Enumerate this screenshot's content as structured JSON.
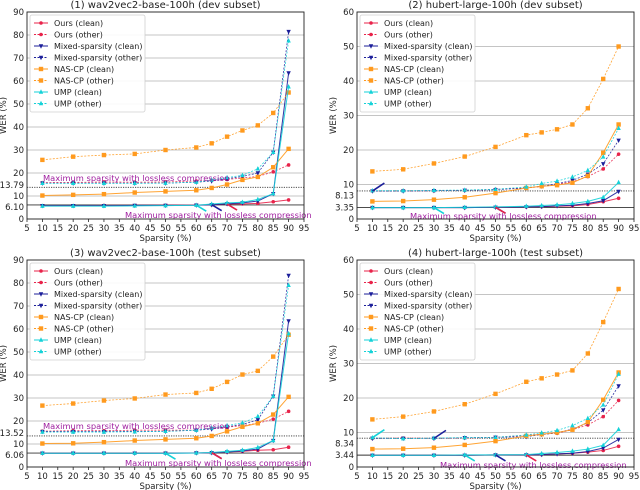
{
  "styles": {
    "Ours": {
      "color": "#e8234a",
      "marker": "circle"
    },
    "Mixed-sparsity": {
      "color": "#1c1f9a",
      "marker": "tri-down"
    },
    "NAS-CP": {
      "color": "#ff9a1e",
      "marker": "square"
    },
    "UMP": {
      "color": "#14d2d8",
      "marker": "tri-up"
    }
  },
  "chart_data": [
    {
      "type": "line",
      "title": "(1) wav2vec2-base-100h (dev subset)",
      "xlabel": "Sparsity (%)",
      "ylabel": "WER (%)",
      "xlim": [
        5,
        95
      ],
      "ylim": [
        0,
        90
      ],
      "xticks": [
        5,
        10,
        15,
        20,
        25,
        30,
        35,
        40,
        45,
        50,
        55,
        60,
        65,
        70,
        75,
        80,
        85,
        90,
        95
      ],
      "yticks": [
        0,
        10,
        20,
        30,
        40,
        50,
        60,
        70,
        80,
        90
      ],
      "ref_lines": [
        {
          "y": 13.79,
          "label": "13.79",
          "style": "dotted"
        },
        {
          "y": 6.1,
          "label": "6.10",
          "style": "solid"
        }
      ],
      "legend": "upper-left",
      "grid": "horizontal",
      "x": [
        10,
        20,
        30,
        40,
        50,
        60,
        65,
        70,
        75,
        80,
        85,
        90
      ],
      "series": [
        {
          "name": "Ours (clean)",
          "method": "Ours",
          "split": "clean",
          "values": [
            5.8,
            5.8,
            5.9,
            5.9,
            6.0,
            6.1,
            6.2,
            6.5,
            6.6,
            6.8,
            7.5,
            8.3
          ]
        },
        {
          "name": "Ours (other)",
          "method": "Ours",
          "split": "other",
          "values": [
            15.8,
            15.9,
            16.1,
            16.0,
            16.1,
            16.5,
            16.8,
            17.2,
            17.8,
            18.5,
            20.5,
            23.5
          ]
        },
        {
          "name": "Mixed-sparsity (clean)",
          "method": "Mixed-sparsity",
          "split": "clean",
          "values": [
            5.8,
            5.8,
            5.8,
            5.9,
            5.9,
            6.0,
            6.2,
            6.6,
            7.0,
            7.8,
            11.0,
            63.5
          ]
        },
        {
          "name": "Mixed-sparsity (other)",
          "method": "Mixed-sparsity",
          "split": "other",
          "values": [
            15.6,
            15.6,
            15.6,
            15.6,
            15.6,
            16.0,
            16.5,
            17.5,
            18.5,
            20.0,
            29.0,
            81.5
          ]
        },
        {
          "name": "NAS-CP (clean)",
          "method": "NAS-CP",
          "split": "clean",
          "values": [
            10.2,
            10.5,
            10.8,
            11.5,
            12.0,
            12.5,
            13.5,
            15.0,
            17.0,
            18.3,
            22.5,
            30.5
          ]
        },
        {
          "name": "NAS-CP (other)",
          "method": "NAS-CP",
          "split": "other",
          "values": [
            25.7,
            27.1,
            27.8,
            28.3,
            30.0,
            31.1,
            32.9,
            35.8,
            38.5,
            40.7,
            46.1,
            55.0
          ]
        },
        {
          "name": "UMP (clean)",
          "method": "UMP",
          "split": "clean",
          "values": [
            5.6,
            5.6,
            5.6,
            5.7,
            5.8,
            6.0,
            6.5,
            7.0,
            7.3,
            8.5,
            11.0,
            57.5
          ]
        },
        {
          "name": "UMP (other)",
          "method": "UMP",
          "split": "other",
          "values": [
            15.5,
            15.5,
            15.5,
            15.5,
            15.6,
            16.0,
            17.0,
            18.0,
            19.0,
            21.8,
            29.0,
            77.5
          ]
        }
      ],
      "annotations": [
        {
          "text": "Maximum sparsity with lossless compression",
          "targets": [
            {
              "series": 6,
              "x": 60
            },
            {
              "series": 2,
              "x": 65
            },
            {
              "series": 0,
              "x": 70
            }
          ]
        }
      ]
    },
    {
      "type": "line",
      "title": "(2) hubert-large-100h (dev subset)",
      "xlabel": "Sparsity (%)",
      "ylabel": "WER (%)",
      "xlim": [
        5,
        95
      ],
      "ylim": [
        0,
        60
      ],
      "xticks": [
        5,
        10,
        15,
        20,
        25,
        30,
        35,
        40,
        45,
        50,
        55,
        60,
        65,
        70,
        75,
        80,
        85,
        90,
        95
      ],
      "yticks": [
        0,
        10,
        20,
        30,
        40,
        50,
        60
      ],
      "ref_lines": [
        {
          "y": 8.13,
          "label": "8.13",
          "style": "dotted"
        },
        {
          "y": 3.35,
          "label": "3.35",
          "style": "solid"
        }
      ],
      "legend": "upper-left",
      "grid": "horizontal",
      "x": [
        10,
        20,
        30,
        40,
        50,
        60,
        65,
        70,
        75,
        80,
        85,
        90
      ],
      "series": [
        {
          "name": "Ours (clean)",
          "method": "Ours",
          "split": "clean",
          "values": [
            3.3,
            3.3,
            3.3,
            3.3,
            3.4,
            3.5,
            3.6,
            3.7,
            3.8,
            4.2,
            5.0,
            6.0
          ]
        },
        {
          "name": "Ours (other)",
          "method": "Ours",
          "split": "other",
          "values": [
            8.1,
            8.2,
            8.2,
            8.3,
            8.6,
            9.0,
            9.4,
            10.0,
            10.8,
            12.3,
            14.5,
            18.8
          ]
        },
        {
          "name": "Mixed-sparsity (clean)",
          "method": "Mixed-sparsity",
          "split": "clean",
          "values": [
            3.3,
            3.3,
            3.3,
            3.3,
            3.4,
            3.5,
            3.6,
            3.8,
            4.0,
            4.5,
            5.3,
            8.0
          ]
        },
        {
          "name": "Mixed-sparsity (other)",
          "method": "Mixed-sparsity",
          "split": "other",
          "values": [
            8.1,
            8.1,
            8.2,
            8.3,
            8.5,
            9.0,
            9.5,
            10.2,
            11.2,
            13.0,
            16.0,
            22.8
          ]
        },
        {
          "name": "NAS-CP (clean)",
          "method": "NAS-CP",
          "split": "clean",
          "values": [
            5.1,
            5.2,
            5.6,
            6.3,
            7.5,
            9.0,
            9.5,
            9.8,
            10.5,
            12.5,
            19.2,
            27.4
          ]
        },
        {
          "name": "NAS-CP (other)",
          "method": "NAS-CP",
          "split": "other",
          "values": [
            13.8,
            14.4,
            16.1,
            18.1,
            20.9,
            24.3,
            25.1,
            26.0,
            27.4,
            32.1,
            40.6,
            50.0
          ]
        },
        {
          "name": "UMP (clean)",
          "method": "UMP",
          "split": "clean",
          "values": [
            3.3,
            3.3,
            3.3,
            3.4,
            3.5,
            3.7,
            3.9,
            4.1,
            4.5,
            5.1,
            6.3,
            10.6
          ]
        },
        {
          "name": "UMP (other)",
          "method": "UMP",
          "split": "other",
          "values": [
            8.2,
            8.2,
            8.3,
            8.4,
            8.6,
            9.3,
            10.3,
            11.0,
            12.2,
            14.1,
            18.0,
            26.3
          ]
        }
      ],
      "annotations": [
        {
          "text": "Maximum sparsity with lossless compression",
          "targets": [
            {
              "series": 3,
              "x": 10
            }
          ]
        },
        {
          "text": "Maximum sparsity with lossless compression",
          "targets": [
            {
              "series": 6,
              "x": 30
            },
            {
              "series": 2,
              "x": 50
            },
            {
              "series": 0,
              "x": 50
            }
          ]
        }
      ]
    },
    {
      "type": "line",
      "title": "(3) wav2vec2-base-100h (test subset)",
      "xlabel": "Sparsity (%)",
      "ylabel": "WER (%)",
      "xlim": [
        5,
        95
      ],
      "ylim": [
        0,
        90
      ],
      "xticks": [
        5,
        10,
        15,
        20,
        25,
        30,
        35,
        40,
        45,
        50,
        55,
        60,
        65,
        70,
        75,
        80,
        85,
        90,
        95
      ],
      "yticks": [
        0,
        10,
        20,
        30,
        40,
        50,
        60,
        70,
        80,
        90
      ],
      "ref_lines": [
        {
          "y": 13.52,
          "label": "13.52",
          "style": "dotted"
        },
        {
          "y": 6.06,
          "label": "6.06",
          "style": "solid"
        }
      ],
      "legend": "upper-left",
      "grid": "horizontal",
      "x": [
        10,
        20,
        30,
        40,
        50,
        60,
        65,
        70,
        75,
        80,
        85,
        90
      ],
      "series": [
        {
          "name": "Ours (clean)",
          "method": "Ours",
          "split": "clean",
          "values": [
            6.0,
            6.0,
            6.0,
            6.0,
            6.1,
            6.1,
            6.2,
            6.5,
            6.8,
            7.3,
            7.5,
            8.6
          ]
        },
        {
          "name": "Ours (other)",
          "method": "Ours",
          "split": "other",
          "values": [
            15.6,
            15.8,
            15.8,
            16.0,
            16.0,
            16.0,
            16.8,
            17.3,
            18.0,
            19.0,
            20.8,
            24.2
          ]
        },
        {
          "name": "Mixed-sparsity (clean)",
          "method": "Mixed-sparsity",
          "split": "clean",
          "values": [
            6.0,
            6.0,
            6.0,
            6.0,
            6.0,
            6.1,
            6.2,
            6.5,
            7.0,
            7.8,
            11.5,
            63.5
          ]
        },
        {
          "name": "Mixed-sparsity (other)",
          "method": "Mixed-sparsity",
          "split": "other",
          "values": [
            15.4,
            15.4,
            15.4,
            15.5,
            15.5,
            16.0,
            16.5,
            17.5,
            18.5,
            20.5,
            30.8,
            83.3
          ]
        },
        {
          "name": "NAS-CP (clean)",
          "method": "NAS-CP",
          "split": "clean",
          "values": [
            10.2,
            10.3,
            10.8,
            11.5,
            12.0,
            12.5,
            13.5,
            15.5,
            17.5,
            19.0,
            22.8,
            30.5
          ]
        },
        {
          "name": "NAS-CP (other)",
          "method": "NAS-CP",
          "split": "other",
          "values": [
            26.7,
            27.6,
            28.9,
            29.8,
            31.5,
            32.2,
            34.0,
            37.0,
            40.2,
            41.8,
            48.0,
            57.5
          ]
        },
        {
          "name": "UMP (clean)",
          "method": "UMP",
          "split": "clean",
          "values": [
            6.0,
            6.0,
            6.0,
            6.0,
            6.0,
            6.1,
            6.3,
            6.8,
            7.3,
            8.5,
            11.5,
            58.0
          ]
        },
        {
          "name": "UMP (other)",
          "method": "UMP",
          "split": "other",
          "values": [
            15.2,
            15.2,
            15.2,
            15.3,
            15.5,
            16.0,
            17.0,
            18.0,
            19.2,
            22.0,
            30.8,
            79.0
          ]
        }
      ],
      "annotations": [
        {
          "text": "Maximum sparsity with lossless compression",
          "targets": [
            {
              "series": 6,
              "x": 50
            },
            {
              "series": 2,
              "x": 65
            },
            {
              "series": 0,
              "x": 65
            }
          ]
        }
      ]
    },
    {
      "type": "line",
      "title": "(4) hubert-large-100h (test subset)",
      "xlabel": "Sparsity (%)",
      "ylabel": "WER (%)",
      "xlim": [
        5,
        95
      ],
      "ylim": [
        0,
        60
      ],
      "xticks": [
        5,
        10,
        15,
        20,
        25,
        30,
        35,
        40,
        45,
        50,
        55,
        60,
        65,
        70,
        75,
        80,
        85,
        90,
        95
      ],
      "yticks": [
        0,
        10,
        20,
        30,
        40,
        50,
        60
      ],
      "ref_lines": [
        {
          "y": 8.34,
          "label": "8.34",
          "style": "dotted"
        },
        {
          "y": 3.44,
          "label": "3.44",
          "style": "solid"
        }
      ],
      "legend": "upper-left",
      "grid": "horizontal",
      "x": [
        10,
        20,
        30,
        40,
        50,
        60,
        65,
        70,
        75,
        80,
        85,
        90
      ],
      "series": [
        {
          "name": "Ours (clean)",
          "method": "Ours",
          "split": "clean",
          "values": [
            3.4,
            3.4,
            3.4,
            3.4,
            3.5,
            3.5,
            3.6,
            3.8,
            4.0,
            4.3,
            4.8,
            6.0
          ]
        },
        {
          "name": "Ours (other)",
          "method": "Ours",
          "split": "other",
          "values": [
            8.3,
            8.4,
            8.3,
            8.4,
            8.6,
            9.2,
            9.5,
            9.8,
            10.8,
            12.2,
            14.6,
            19.3
          ]
        },
        {
          "name": "Mixed-sparsity (clean)",
          "method": "Mixed-sparsity",
          "split": "clean",
          "values": [
            3.4,
            3.4,
            3.4,
            3.4,
            3.5,
            3.5,
            3.6,
            3.8,
            4.0,
            4.5,
            5.5,
            8.0
          ]
        },
        {
          "name": "Mixed-sparsity (other)",
          "method": "Mixed-sparsity",
          "split": "other",
          "values": [
            8.3,
            8.3,
            8.3,
            8.5,
            8.6,
            8.8,
            9.4,
            9.9,
            11.0,
            12.8,
            16.5,
            23.5
          ]
        },
        {
          "name": "NAS-CP (clean)",
          "method": "NAS-CP",
          "split": "clean",
          "values": [
            5.2,
            5.3,
            5.6,
            6.4,
            7.5,
            9.0,
            9.5,
            10.0,
            10.8,
            13.0,
            19.5,
            27.4
          ]
        },
        {
          "name": "NAS-CP (other)",
          "method": "NAS-CP",
          "split": "other",
          "values": [
            13.8,
            14.6,
            16.1,
            18.2,
            21.2,
            24.7,
            25.7,
            26.8,
            28.0,
            32.9,
            42.0,
            51.6
          ]
        },
        {
          "name": "UMP (clean)",
          "method": "UMP",
          "split": "clean",
          "values": [
            3.4,
            3.4,
            3.4,
            3.5,
            3.5,
            3.6,
            3.9,
            4.2,
            4.6,
            5.2,
            6.3,
            10.9
          ]
        },
        {
          "name": "UMP (other)",
          "method": "UMP",
          "split": "other",
          "values": [
            8.5,
            8.2,
            8.4,
            8.5,
            8.6,
            9.3,
            9.9,
            10.6,
            12.0,
            14.1,
            18.0,
            26.9
          ]
        }
      ],
      "annotations": [
        {
          "text": "Maximum sparsity with lossless compression",
          "targets": [
            {
              "series": 7,
              "x": 10
            },
            {
              "series": 3,
              "x": 30
            }
          ]
        },
        {
          "text": "Maximum sparsity with lossless compression",
          "targets": [
            {
              "series": 6,
              "x": 40
            },
            {
              "series": 2,
              "x": 50
            },
            {
              "series": 0,
              "x": 60
            }
          ]
        }
      ]
    }
  ]
}
